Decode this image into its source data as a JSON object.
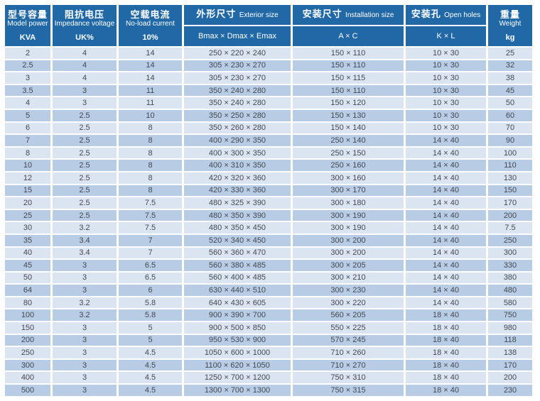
{
  "colors": {
    "header_bg": "#2168a6",
    "row_light": "#dbe5f1",
    "row_dark": "#b8cce6",
    "cell_text": "#43484f",
    "header_text": "#ffffff"
  },
  "table": {
    "columns": [
      {
        "zh": "型号容量",
        "en": "Model power",
        "unit": "KVA"
      },
      {
        "zh": "阻抗电压",
        "en": "Impedance voltage",
        "unit": "UK%"
      },
      {
        "zh": "空载电流",
        "en": "No-load current",
        "unit": "10%"
      },
      {
        "zh": "外形尺寸",
        "en": "Exterior size",
        "sub": "Bmax × Dmax × Emax"
      },
      {
        "zh": "安装尺寸",
        "en": "Installation size",
        "sub": "A × C"
      },
      {
        "zh": "安装孔",
        "en": "Open holes",
        "sub": "K × L"
      },
      {
        "zh": "重量",
        "en": "Weight",
        "unit": "kg"
      }
    ],
    "rows": [
      [
        "2",
        "4",
        "14",
        "250 × 220 × 240",
        "150 × 110",
        "10 × 30",
        "25"
      ],
      [
        "2.5",
        "4",
        "14",
        "305 × 230 × 270",
        "150 × 110",
        "10 × 30",
        "32"
      ],
      [
        "3",
        "4",
        "14",
        "305 × 230 × 270",
        "150 × 115",
        "10 × 30",
        "38"
      ],
      [
        "3.5",
        "3",
        "11",
        "350 × 240 × 280",
        "150 × 110",
        "10 × 30",
        "45"
      ],
      [
        "4",
        "3",
        "11",
        "350 × 240 × 280",
        "150 × 120",
        "10 × 30",
        "50"
      ],
      [
        "5",
        "2.5",
        "10",
        "350 × 250 × 280",
        "150 × 130",
        "10 × 30",
        "60"
      ],
      [
        "6",
        "2.5",
        "8",
        "350 × 260 × 280",
        "150 × 140",
        "10 × 30",
        "70"
      ],
      [
        "7",
        "2.5",
        "8",
        "400 × 290 × 350",
        "250 × 140",
        "14 × 40",
        "90"
      ],
      [
        "8",
        "2.5",
        "8",
        "400 × 300 × 350",
        "250 × 150",
        "14 × 40",
        "100"
      ],
      [
        "10",
        "2.5",
        "8",
        "400 × 310 × 350",
        "250 × 160",
        "14 × 40",
        "110"
      ],
      [
        "12",
        "2.5",
        "8",
        "420 × 320 × 360",
        "300 × 160",
        "14 × 40",
        "130"
      ],
      [
        "15",
        "2.5",
        "8",
        "420 × 330 × 360",
        "300 × 170",
        "14 × 40",
        "150"
      ],
      [
        "20",
        "2.5",
        "7.5",
        "480 × 325 × 390",
        "300 × 180",
        "14 × 40",
        "170"
      ],
      [
        "25",
        "2.5",
        "7.5",
        "480 × 350 × 390",
        "300 × 190",
        "14 × 40",
        "200"
      ],
      [
        "30",
        "3.2",
        "7.5",
        "480 × 350 × 450",
        "300 × 190",
        "14 × 40",
        "7.5"
      ],
      [
        "35",
        "3.4",
        "7",
        "520 × 340 × 450",
        "300 × 200",
        "14 × 40",
        "250"
      ],
      [
        "40",
        "3.4",
        "7",
        "560 × 360 × 470",
        "300 × 200",
        "14 × 40",
        "300"
      ],
      [
        "45",
        "3",
        "6.5",
        "560 × 380 × 485",
        "300 × 205",
        "14 × 40",
        "330"
      ],
      [
        "50",
        "3",
        "6.5",
        "560 × 400 × 485",
        "300 × 210",
        "14 × 40",
        "380"
      ],
      [
        "64",
        "3",
        "6",
        "630 × 440 × 510",
        "300 × 230",
        "14 × 40",
        "480"
      ],
      [
        "80",
        "3.2",
        "5.8",
        "640 × 430 × 605",
        "300 × 220",
        "14 × 40",
        "580"
      ],
      [
        "100",
        "3.2",
        "5.8",
        "900 × 390 × 700",
        "560 × 205",
        "18 × 40",
        "750"
      ],
      [
        "150",
        "3",
        "5",
        "900 × 500 × 850",
        "550 × 225",
        "18 × 40",
        "980"
      ],
      [
        "200",
        "3",
        "5",
        "950 × 530 × 900",
        "570 × 245",
        "18 × 40",
        "118"
      ],
      [
        "250",
        "3",
        "4.5",
        "1050 × 600 × 1000",
        "710 × 260",
        "18 × 40",
        "138"
      ],
      [
        "300",
        "3",
        "4.5",
        "1100 × 620 × 1050",
        "710 × 270",
        "18 × 40",
        "170"
      ],
      [
        "400",
        "3",
        "4.5",
        "1250 × 700 × 1200",
        "750 × 310",
        "18 × 40",
        "200"
      ],
      [
        "500",
        "3",
        "4.5",
        "1300 × 700 × 1300",
        "750 × 315",
        "18 × 40",
        "230"
      ]
    ]
  }
}
